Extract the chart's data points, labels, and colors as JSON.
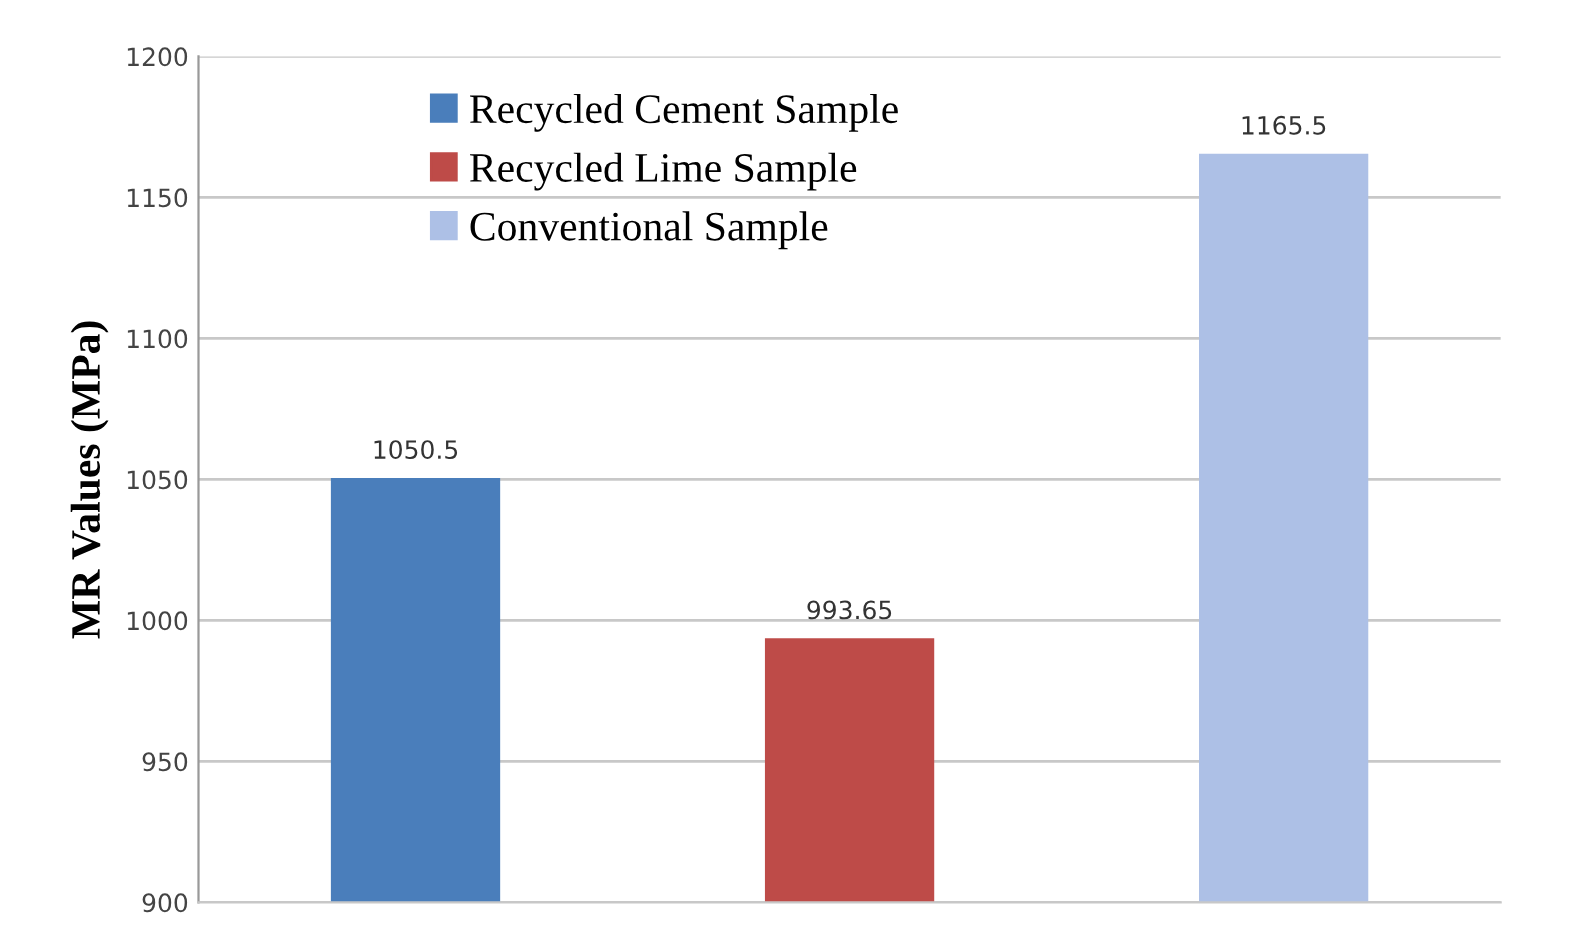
{
  "chart_data": {
    "type": "bar",
    "ylabel": "MR Values (MPa)",
    "categories": [
      null,
      null,
      null
    ],
    "series": [
      {
        "name": "Recycled Cement Sample",
        "color": "#4a7ebb",
        "values": [
          1050.5,
          null,
          null
        ]
      },
      {
        "name": "Recycled Lime Sample",
        "color": "#be4b48",
        "values": [
          null,
          993.65,
          null
        ]
      },
      {
        "name": "Conventional Sample",
        "color": "#adc0e6",
        "values": [
          null,
          null,
          1165.5
        ]
      }
    ],
    "ylim": [
      900,
      1200
    ],
    "yticks": [
      900,
      950,
      1000,
      1050,
      1100,
      1150,
      1200
    ],
    "grid": "y",
    "legend": "top left",
    "data_labels": true
  }
}
